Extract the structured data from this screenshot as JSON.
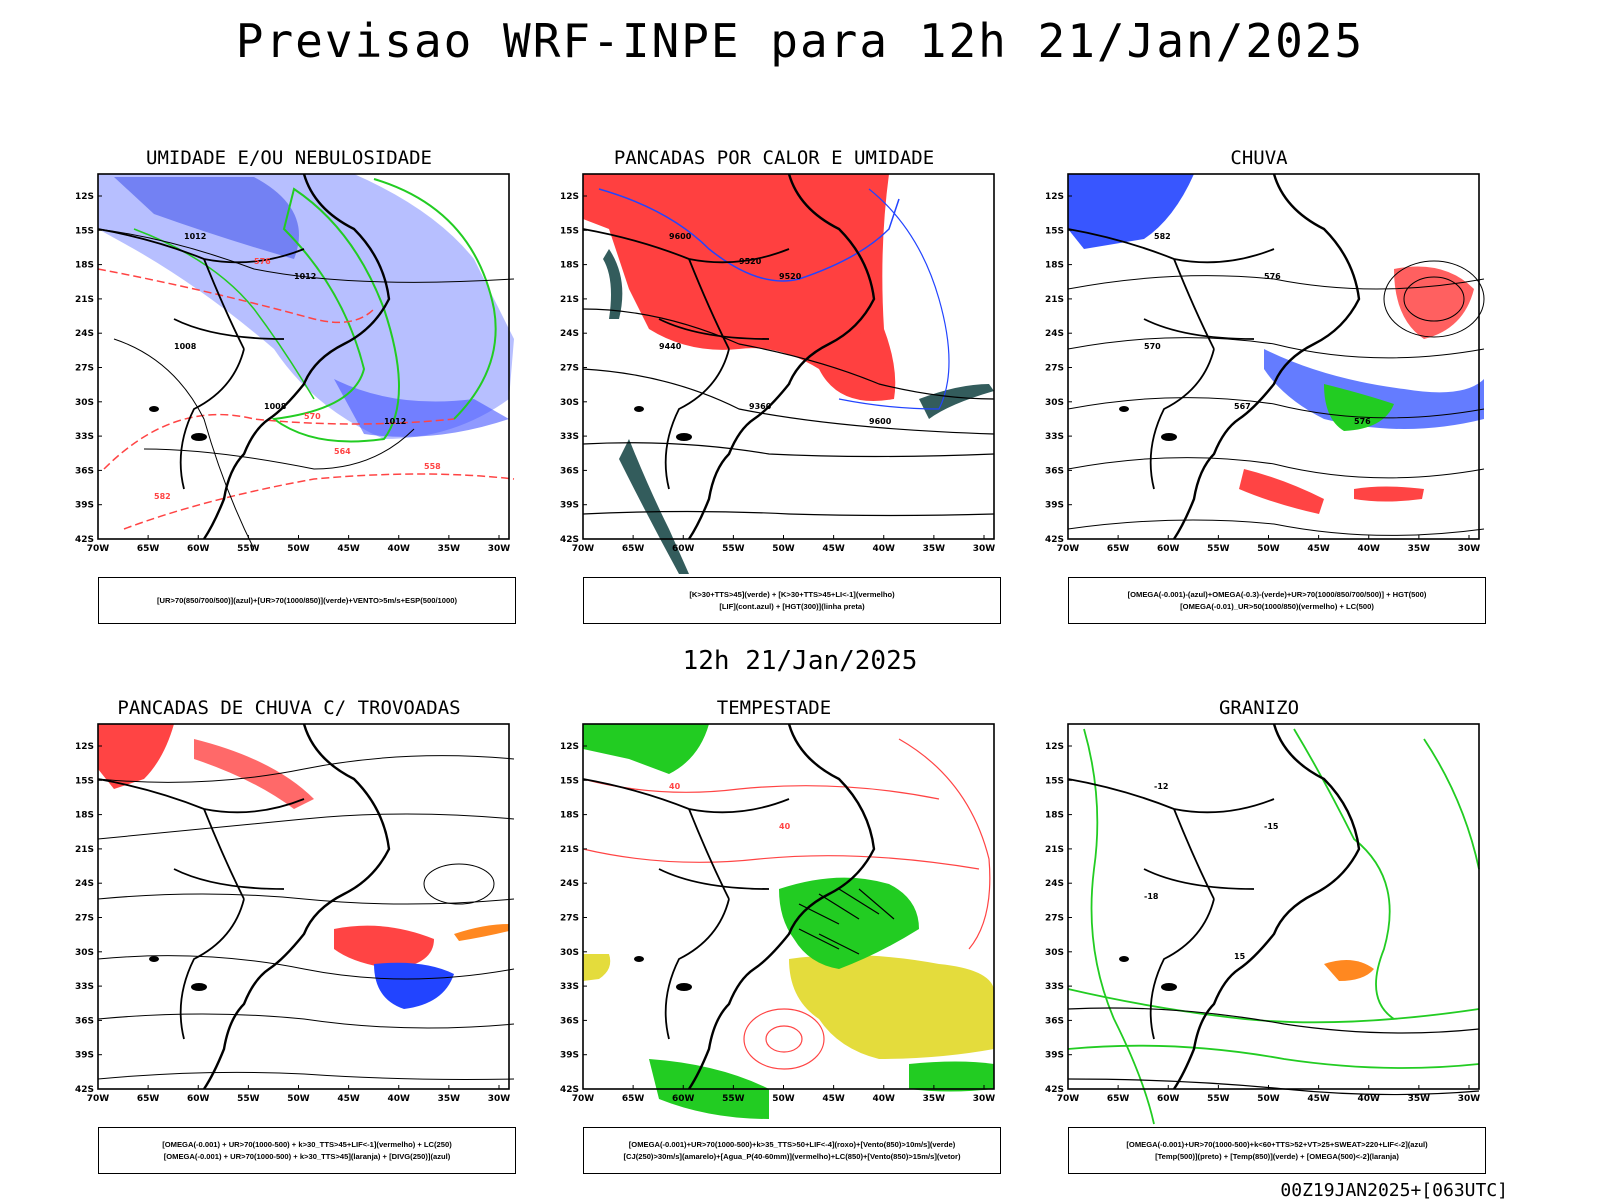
{
  "main_title": "Previsao WRF-INPE  para 12h 21/Jan/2025",
  "mid_title": "12h 21/Jan/2025",
  "footer": "00Z19JAN2025+[063UTC]",
  "axes": {
    "lat_labels": [
      "12S",
      "15S",
      "18S",
      "21S",
      "24S",
      "27S",
      "30S",
      "33S",
      "36S",
      "39S",
      "42S"
    ],
    "lon_labels": [
      "70W",
      "65W",
      "60W",
      "55W",
      "50W",
      "45W",
      "40W",
      "35W",
      "30W"
    ]
  },
  "colors": {
    "green": "#22cc22",
    "blue": "#2244ff",
    "red": "#ff4444",
    "light_blue": "#aab4ff",
    "yellow": "#e4dc3c",
    "orange": "#ff8820",
    "dark_teal": "#335c5c"
  },
  "panels": [
    {
      "title": "UMIDADE E/OU NEBULOSIDADE",
      "legend": [
        "[UR>70(850/700/500)](azul)+[UR>70(1000/850)](verde)+VENTO>5m/s+ESP(500/1000)"
      ],
      "contour_labels": [
        "1012",
        "1012",
        "1008",
        "1008",
        "1012",
        "576",
        "570",
        "564",
        "558",
        "582"
      ]
    },
    {
      "title": "PANCADAS POR CALOR E UMIDADE",
      "legend": [
        "[K>30+TTS>45](verde) + [K>30+TTS>45+LI<-1](vermelho)",
        "[LIF](cont.azul) + [HGT(300)](linha preta)"
      ],
      "contour_labels": [
        "9600",
        "9520",
        "9440",
        "9360",
        "9600",
        "9520"
      ]
    },
    {
      "title": "CHUVA",
      "legend": [
        "[OMEGA(-0.001)-(azul)+OMEGA(-0.3)-(verde)+UR>70(1000/850/700/500)] + HGT(500)",
        "[OMEGA(-0.01)_UR>50(1000/850)(vermelho) + LC(500)"
      ],
      "contour_labels": [
        "582",
        "576",
        "570",
        "567",
        "576"
      ]
    },
    {
      "title": "PANCADAS DE CHUVA C/ TROVOADAS",
      "legend": [
        "[OMEGA(-0.001) + UR>70(1000-500) + k>30_TTS>45+LIF<-1](vermelho) + LC(250)",
        "[OMEGA(-0.001) + UR>70(1000-500) + k>30_TTS>45](laranja) + [DIVG(250)](azul)"
      ],
      "contour_labels": []
    },
    {
      "title": "TEMPESTADE",
      "legend": [
        "[OMEGA(-0.001)+UR>70(1000-500)+k>35_TTS>50+LIF<-4](roxo)+[Vento(850)>10m/s](verde)",
        "[CJ(250)>30m/s](amarelo)+[Agua_P(40-60mm)](vermelho)+LC(850)+[Vento(850)>15m/s](vetor)"
      ],
      "contour_labels": [
        "40",
        "40"
      ]
    },
    {
      "title": "GRANIZO",
      "legend": [
        "[OMEGA(-0.001)+UR>70(1000-500)+k<60+TTS>52+VT>25+SWEAT>220+LIF<-2](azul)",
        "[Temp(500)](preto) + [Temp(850)](verde) + [OMEGA(500)<-2](laranja)"
      ],
      "contour_labels": [
        "-12",
        "-15",
        "-18",
        "15"
      ]
    }
  ]
}
